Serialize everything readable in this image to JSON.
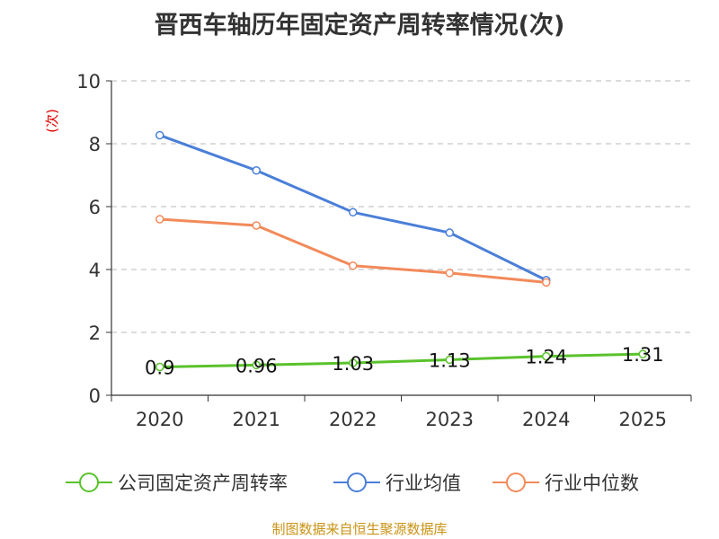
{
  "chart_data": {
    "type": "line",
    "title": "晋西车轴历年固定资产周转率情况(次)",
    "ylabel": "(次)",
    "categories": [
      "2020",
      "2021",
      "2022",
      "2023",
      "2024",
      "2025"
    ],
    "ylim": [
      0,
      10
    ],
    "yticks": [
      0,
      2,
      4,
      6,
      8,
      10
    ],
    "grid": true,
    "legend_position": "bottom",
    "series": [
      {
        "name": "公司固定资产周转率",
        "color": "#5ac22c",
        "values": [
          0.9,
          0.96,
          1.03,
          1.13,
          1.24,
          1.31
        ],
        "labels": [
          "0.9",
          "0.96",
          "1.03",
          "1.13",
          "1.24",
          "1.31"
        ]
      },
      {
        "name": "行业均值",
        "color": "#4a7fd8",
        "values": [
          8.27,
          7.15,
          5.82,
          5.17,
          3.66,
          null
        ]
      },
      {
        "name": "行业中位数",
        "color": "#f28a5a",
        "values": [
          5.6,
          5.4,
          4.12,
          3.89,
          3.59,
          null
        ]
      }
    ]
  },
  "source": "制图数据来自恒生聚源数据库"
}
